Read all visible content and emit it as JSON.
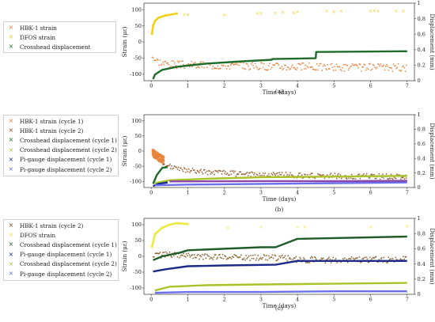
{
  "chart_data": [
    {
      "id": "a",
      "type": "scatter",
      "panel_label": "(a)",
      "xlabel": "Time (days)",
      "ylabel": "Strain (με)",
      "y2label": "Displacement (mm)",
      "xlim": [
        -0.2,
        7.2
      ],
      "ylim": [
        -120,
        120
      ],
      "y2lim": [
        0,
        1
      ],
      "xticks": [
        0,
        1,
        2,
        3,
        4,
        5,
        6,
        7
      ],
      "yticks": [
        -100,
        -50,
        0,
        50,
        100
      ],
      "y2ticks": [
        0,
        0.2,
        0.4,
        0.6,
        0.8,
        1
      ],
      "legend": [
        "HBK-1 strain",
        "DFOS strain",
        "Crosshead displacement"
      ],
      "series": [
        {
          "name": "HBK-1 strain",
          "axis": "left",
          "color": "#e07a30",
          "kind": "noisy",
          "x": [
            0.02,
            0.1,
            0.3,
            0.7,
            1.5,
            3,
            5,
            7
          ],
          "y": [
            -40,
            -55,
            -65,
            -70,
            -72,
            -75,
            -78,
            -80
          ],
          "noise": 12
        },
        {
          "name": "DFOS strain",
          "axis": "left",
          "color": "#f2cf1a",
          "kind": "dense-then-sparse",
          "x": [
            0.02,
            0.05,
            0.1,
            0.2,
            0.4,
            0.7,
            0.9,
            1.0,
            2.0,
            2.9,
            3.0,
            3.4,
            3.6,
            3.9,
            4.0,
            4.8,
            5.0,
            5.2,
            6.0,
            6.1,
            6.2,
            6.7,
            6.9
          ],
          "y": [
            25,
            50,
            65,
            75,
            82,
            88,
            85,
            85,
            83,
            88,
            90,
            90,
            92,
            90,
            93,
            95,
            93,
            95,
            95,
            97,
            95,
            96,
            96
          ]
        },
        {
          "name": "Crosshead displacement",
          "axis": "right",
          "color": "#1f6b2a",
          "kind": "line",
          "x": [
            0.05,
            0.1,
            0.3,
            0.7,
            1.5,
            2.5,
            3.3,
            3.31,
            4.5,
            4.51,
            7.0
          ],
          "y": [
            0.02,
            0.08,
            0.14,
            0.18,
            0.22,
            0.25,
            0.27,
            0.28,
            0.29,
            0.37,
            0.38
          ]
        }
      ]
    },
    {
      "id": "b",
      "type": "scatter",
      "panel_label": "(b)",
      "xlabel": "Time (days)",
      "ylabel": "Strain (με)",
      "y2label": "Displacement (mm)",
      "xlim": [
        -0.2,
        7.2
      ],
      "ylim": [
        -120,
        120
      ],
      "y2lim": [
        0,
        1
      ],
      "xticks": [
        0,
        1,
        2,
        3,
        4,
        5,
        6,
        7
      ],
      "yticks": [
        -100,
        -50,
        0,
        50,
        100
      ],
      "y2ticks": [
        0,
        0.2,
        0.4,
        0.6,
        0.8,
        1
      ],
      "legend": [
        "HBK-1 strain (cycle 1)",
        "HBK-1 strain (cycle 2)",
        "Crosshead displacement (cycle 1)",
        "Crosshead displacement (cycle 2)",
        "Pi-gauge displacement (cycle 1)",
        "Pi-gauge displacement (cycle 2)"
      ],
      "series": [
        {
          "name": "HBK-1 strain (cycle 1)",
          "axis": "left",
          "color": "#e8843a",
          "kind": "noisy",
          "x": [
            0.02,
            0.1,
            0.2,
            0.35
          ],
          "y": [
            -5,
            -10,
            -20,
            -30
          ],
          "noise": 14
        },
        {
          "name": "HBK-1 strain (cycle 2)",
          "axis": "left",
          "color": "#8b4a16",
          "kind": "noisy",
          "x": [
            0.3,
            0.8,
            1.5,
            3,
            5,
            7
          ],
          "y": [
            -45,
            -60,
            -70,
            -78,
            -82,
            -85
          ],
          "noise": 9
        },
        {
          "name": "Crosshead displacement (cycle 1)",
          "axis": "right",
          "color": "#1f6b2a",
          "kind": "line",
          "x": [
            0.05,
            0.15,
            0.3,
            0.45
          ],
          "y": [
            0.05,
            0.17,
            0.27,
            0.28
          ]
        },
        {
          "name": "Crosshead displacement (cycle 2)",
          "axis": "right",
          "color": "#a9c22a",
          "kind": "line",
          "x": [
            0.1,
            0.5,
            1.5,
            3,
            5,
            7
          ],
          "y": [
            0.06,
            0.1,
            0.12,
            0.14,
            0.15,
            0.16
          ]
        },
        {
          "name": "Pi-gauge displacement (cycle 1)",
          "axis": "right",
          "color": "#1c2a8a",
          "kind": "line",
          "x": [
            0.05,
            0.2,
            0.45
          ],
          "y": [
            0.02,
            0.05,
            0.07
          ]
        },
        {
          "name": "Pi-gauge displacement (cycle 2)",
          "axis": "right",
          "color": "#6a6ff0",
          "kind": "line",
          "x": [
            0.1,
            1,
            3,
            5,
            7
          ],
          "y": [
            0.03,
            0.04,
            0.05,
            0.06,
            0.07
          ]
        },
        {
          "name": "",
          "axis": "left",
          "color": "#8a48a8",
          "kind": "line",
          "x": [
            0.5,
            3,
            5,
            7
          ],
          "y": [
            -100,
            -99,
            -99,
            -98
          ]
        }
      ]
    },
    {
      "id": "c",
      "type": "scatter",
      "panel_label": "(c)",
      "xlabel": "Time (days)",
      "ylabel": "Strain (με)",
      "y2label": "Displacement (mm)",
      "xlim": [
        -0.2,
        7.2
      ],
      "ylim": [
        -120,
        120
      ],
      "y2lim": [
        0,
        1
      ],
      "xticks": [
        0,
        1,
        2,
        3,
        4,
        5,
        6,
        7
      ],
      "yticks": [
        -100,
        -50,
        0,
        50,
        100
      ],
      "y2ticks": [
        0,
        0.2,
        0.4,
        0.6,
        0.8,
        1
      ],
      "legend": [
        "HBK-1 strain (cycle 2)",
        "DFOS strain",
        "Crosshead displacement (cycle 1)",
        "Pi-gauge displacement (cycle 1)",
        "Crosshead displacement (cycle 2)",
        "Pi-gauge displacement (cycle 2)"
      ],
      "series": [
        {
          "name": "HBK-1 strain (cycle 2)",
          "axis": "left",
          "color": "#7a4a10",
          "kind": "noisy",
          "x": [
            0.05,
            0.3,
            1,
            2,
            3.4,
            4,
            5,
            7
          ],
          "y": [
            0,
            5,
            0,
            -2,
            -5,
            -10,
            -12,
            -10
          ],
          "noise": 10
        },
        {
          "name": "DFOS strain",
          "axis": "left",
          "color": "#ecea40",
          "kind": "dense-then-sparse",
          "x": [
            0.02,
            0.1,
            0.3,
            0.5,
            0.7,
            1.0,
            2.1,
            3.0,
            4.0,
            4.2,
            6.0,
            7.0
          ],
          "y": [
            30,
            70,
            90,
            100,
            105,
            102,
            90,
            92,
            92,
            92,
            93,
            95
          ]
        },
        {
          "name": "Crosshead displacement (cycle 1)",
          "axis": "right",
          "color": "#1f5c2a",
          "kind": "line",
          "x": [
            0.05,
            0.3,
            0.8,
            1.0,
            3.0,
            3.4,
            4.0,
            7.0
          ],
          "y": [
            0.45,
            0.5,
            0.55,
            0.58,
            0.62,
            0.62,
            0.73,
            0.76
          ]
        },
        {
          "name": "Pi-gauge displacement (cycle 1)",
          "axis": "right",
          "color": "#1c2a8a",
          "kind": "line",
          "x": [
            0.05,
            0.4,
            1.0,
            2.0,
            3.4,
            4.0,
            7.0
          ],
          "y": [
            0.3,
            0.33,
            0.37,
            0.38,
            0.39,
            0.44,
            0.44
          ]
        },
        {
          "name": "Crosshead displacement (cycle 2)",
          "axis": "right",
          "color": "#a9c22a",
          "kind": "line",
          "x": [
            0.1,
            0.5,
            1.5,
            3.0,
            5.0,
            7.0
          ],
          "y": [
            0.05,
            0.1,
            0.12,
            0.13,
            0.14,
            0.15
          ]
        },
        {
          "name": "Pi-gauge displacement (cycle 2)",
          "axis": "right",
          "color": "#6a6ff0",
          "kind": "line",
          "x": [
            0.1,
            1.0,
            3.0,
            5.0,
            7.0
          ],
          "y": [
            0.02,
            0.03,
            0.03,
            0.04,
            0.04
          ]
        }
      ]
    }
  ]
}
